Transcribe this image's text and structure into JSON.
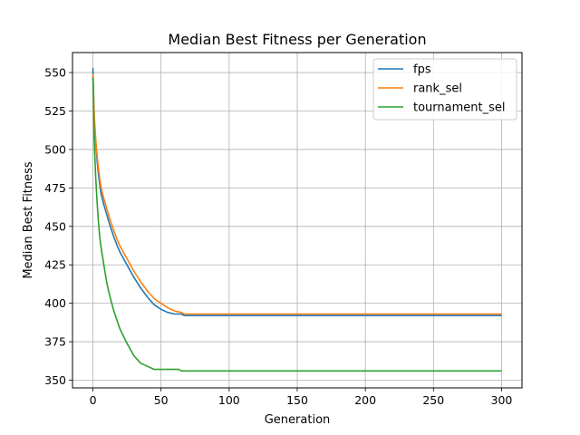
{
  "chart_data": {
    "type": "line",
    "title": "Median Best Fitness per Generation",
    "xlabel": "Generation",
    "ylabel": "Median Best Fitness",
    "xlim": [
      -15,
      315
    ],
    "ylim": [
      345,
      563
    ],
    "xticks": [
      0,
      50,
      100,
      150,
      200,
      250,
      300
    ],
    "yticks": [
      350,
      375,
      400,
      425,
      450,
      475,
      500,
      525,
      550
    ],
    "grid": true,
    "legend": "top-right",
    "series": [
      {
        "name": "fps",
        "color": "#1f77b4",
        "x": [
          0,
          1,
          2,
          3,
          4,
          5,
          6,
          8,
          10,
          12,
          15,
          18,
          20,
          25,
          30,
          35,
          40,
          45,
          50,
          55,
          60,
          65,
          67,
          70,
          80,
          100,
          150,
          200,
          250,
          300
        ],
        "y": [
          553,
          520,
          505,
          493,
          484,
          477,
          471,
          464,
          458,
          452,
          444,
          437,
          433,
          425,
          417,
          410,
          404,
          399,
          396,
          394,
          393,
          393,
          392,
          392,
          392,
          392,
          392,
          392,
          392,
          392
        ]
      },
      {
        "name": "rank_sel",
        "color": "#ff7f0e",
        "x": [
          0,
          1,
          2,
          3,
          4,
          5,
          6,
          8,
          10,
          12,
          15,
          18,
          20,
          25,
          30,
          35,
          40,
          45,
          50,
          55,
          60,
          65,
          67,
          70,
          80,
          100,
          150,
          200,
          250,
          300
        ],
        "y": [
          549,
          522,
          507,
          496,
          488,
          481,
          475,
          468,
          462,
          456,
          448,
          441,
          437,
          429,
          421,
          414,
          408,
          403,
          400,
          397,
          395,
          394,
          393,
          393,
          393,
          393,
          393,
          393,
          393,
          393
        ]
      },
      {
        "name": "tournament_sel",
        "color": "#2ca02c",
        "x": [
          0,
          1,
          2,
          3,
          4,
          5,
          6,
          8,
          10,
          12,
          15,
          18,
          20,
          25,
          30,
          35,
          40,
          45,
          50,
          55,
          60,
          63,
          65,
          70,
          100,
          150,
          200,
          250,
          300
        ],
        "y": [
          547,
          505,
          482,
          466,
          453,
          443,
          436,
          425,
          414,
          406,
          396,
          388,
          383,
          374,
          366,
          361,
          359,
          357,
          357,
          357,
          357,
          357,
          356,
          356,
          356,
          356,
          356,
          356,
          356
        ]
      }
    ]
  }
}
